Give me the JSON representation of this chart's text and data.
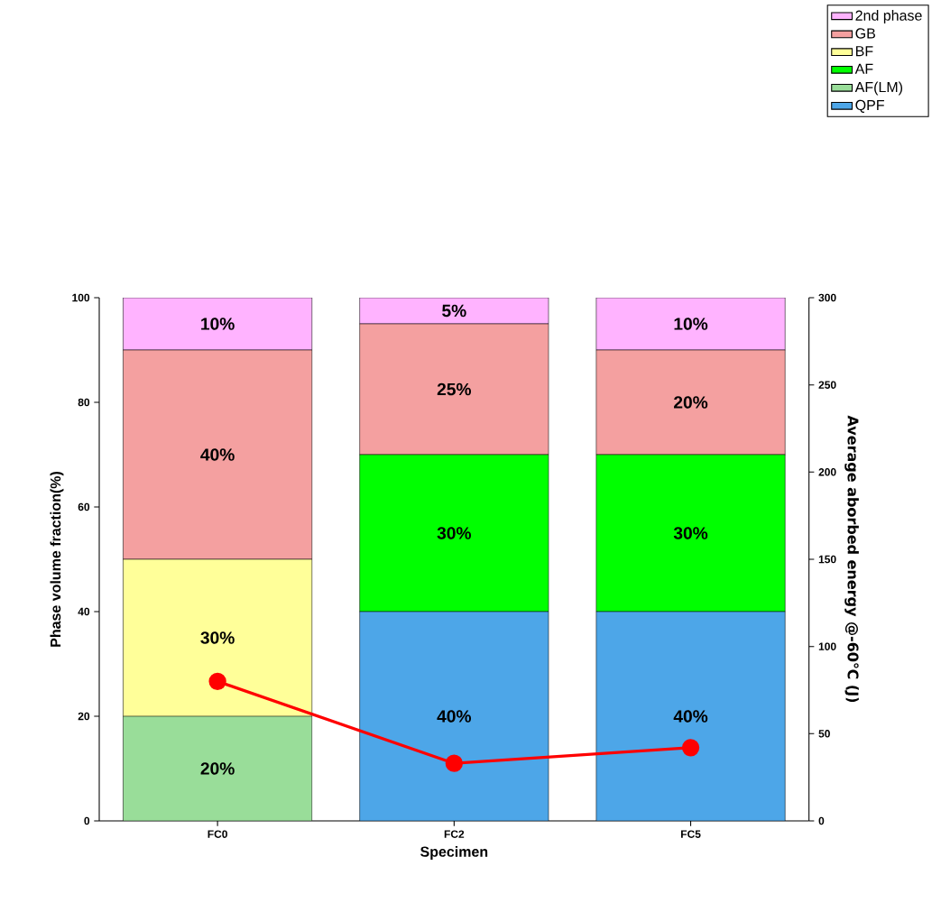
{
  "chart_data": {
    "type": "bar",
    "stacked": true,
    "xlabel": "Specimen",
    "ylabel": "Phase volume fraction(%)",
    "y2label": "Average aborbed energy @-60℃ (J)",
    "categories": [
      "FC0",
      "FC2",
      "FC5"
    ],
    "series": [
      {
        "name": "QPF",
        "color": "#4da6e8",
        "values": [
          0,
          40,
          40
        ],
        "value_labels": [
          null,
          "40%",
          "40%"
        ]
      },
      {
        "name": "AF(LM)",
        "color": "#99dd99",
        "values": [
          20,
          0,
          0
        ],
        "value_labels": [
          "20%",
          null,
          null
        ]
      },
      {
        "name": "AF",
        "color": "#00ff00",
        "values": [
          0,
          30,
          30
        ],
        "value_labels": [
          null,
          "30%",
          "30%"
        ]
      },
      {
        "name": "BF",
        "color": "#ffff99",
        "values": [
          30,
          0,
          0
        ],
        "value_labels": [
          "30%",
          null,
          null
        ]
      },
      {
        "name": "GB",
        "color": "#f4a0a0",
        "values": [
          40,
          25,
          20
        ],
        "value_labels": [
          "40%",
          "25%",
          "20%"
        ]
      },
      {
        "name": "2nd phase",
        "color": "#ffb3ff",
        "values": [
          10,
          5,
          10
        ],
        "value_labels": [
          "10%",
          "5%",
          "10%"
        ]
      },
      {
        "type": "line",
        "axis": "y2",
        "color": "#ff0000",
        "values": [
          80,
          33,
          42
        ]
      }
    ],
    "ylim": [
      0,
      100
    ],
    "yticks": [
      0,
      20,
      40,
      60,
      80,
      100
    ],
    "y2lim": [
      0,
      300
    ],
    "y2ticks": [
      0,
      50,
      100,
      150,
      200,
      250,
      300
    ],
    "legend": "top right",
    "marker": "circle",
    "grid": false
  }
}
